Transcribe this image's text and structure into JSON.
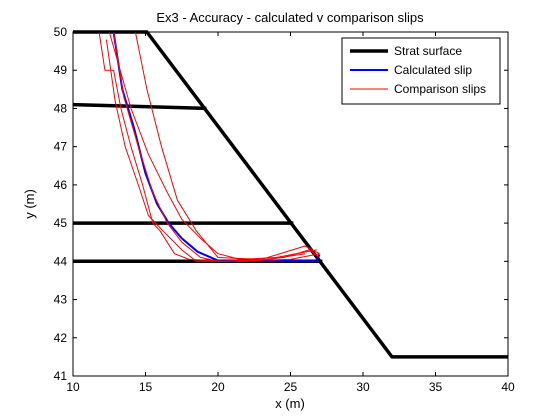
{
  "chart_data": {
    "type": "line",
    "title": "Ex3 - Accuracy - calculated v comparison slips",
    "xlabel": "x (m)",
    "ylabel": "y (m)",
    "xlim": [
      10,
      40
    ],
    "ylim": [
      41,
      50
    ],
    "xticks": [
      10,
      15,
      20,
      25,
      30,
      35,
      40
    ],
    "yticks": [
      41,
      42,
      43,
      44,
      45,
      46,
      47,
      48,
      49,
      50
    ],
    "grid": false,
    "legend_position": "top-right",
    "series": [
      {
        "name": "Strat surface",
        "color": "#000000",
        "segments": [
          [
            [
              10,
              50
            ],
            [
              15.1,
              50
            ],
            [
              32,
              41.5
            ],
            [
              40,
              41.5
            ]
          ],
          [
            [
              10,
              48.1
            ],
            [
              19.2,
              48
            ]
          ],
          [
            [
              10,
              45
            ],
            [
              25.2,
              45
            ]
          ],
          [
            [
              10,
              44
            ],
            [
              27.2,
              44
            ]
          ]
        ]
      },
      {
        "name": "Calculated slip",
        "color": "#0000ff",
        "segments": [
          [
            [
              12.8,
              50
            ],
            [
              13.4,
              48.5
            ],
            [
              14.2,
              47.5
            ],
            [
              15.0,
              46.3
            ],
            [
              15.8,
              45.5
            ],
            [
              16.6,
              45.0
            ],
            [
              17.5,
              44.6
            ],
            [
              18.6,
              44.25
            ],
            [
              20.0,
              44.02
            ],
            [
              26.8,
              44.0
            ],
            [
              27.0,
              44.18
            ]
          ]
        ]
      },
      {
        "name": "Comparison slips",
        "color": "#ff0000",
        "segments": [
          [
            [
              12.3,
              49.8
            ],
            [
              12.9,
              48.2
            ],
            [
              13.6,
              47.0
            ],
            [
              14.5,
              46.0
            ],
            [
              15.2,
              45.2
            ],
            [
              16.2,
              44.8
            ],
            [
              17.5,
              44.3
            ],
            [
              18.5,
              44.0
            ],
            [
              22.0,
              44.0
            ],
            [
              24.5,
              44.1
            ],
            [
              26.3,
              44.3
            ],
            [
              27.0,
              44.1
            ]
          ],
          [
            [
              12.8,
              50.0
            ],
            [
              13.5,
              48.3
            ],
            [
              14.5,
              47.0
            ],
            [
              15.5,
              45.8
            ],
            [
              16.5,
              45.0
            ],
            [
              17.5,
              44.5
            ],
            [
              18.8,
              44.1
            ],
            [
              20.0,
              44.0
            ],
            [
              25.0,
              44.05
            ],
            [
              27.0,
              44.2
            ]
          ],
          [
            [
              12.5,
              50.0
            ],
            [
              14.0,
              48.0
            ],
            [
              15.2,
              46.8
            ],
            [
              16.5,
              45.8
            ],
            [
              17.5,
              45.1
            ],
            [
              18.8,
              44.6
            ],
            [
              20.0,
              44.2
            ],
            [
              21.5,
              44.05
            ],
            [
              24.0,
              44.1
            ],
            [
              26.8,
              44.3
            ]
          ],
          [
            [
              14.3,
              50.0
            ],
            [
              15.1,
              48.5
            ],
            [
              16.1,
              47.0
            ],
            [
              17.2,
              45.6
            ],
            [
              18.5,
              44.8
            ],
            [
              20.0,
              44.1
            ],
            [
              23.0,
              44.05
            ],
            [
              26.0,
              44.4
            ],
            [
              27.0,
              44.2
            ]
          ],
          [
            [
              11.8,
              50.0
            ],
            [
              12.2,
              49.0
            ],
            [
              12.8,
              49.0
            ],
            [
              13.3,
              48.0
            ],
            [
              14.0,
              47.0
            ],
            [
              14.8,
              46.0
            ],
            [
              15.5,
              45.0
            ],
            [
              16.0,
              44.8
            ],
            [
              17.0,
              44.2
            ],
            [
              18.0,
              44.05
            ],
            [
              20.5,
              44.0
            ],
            [
              23.5,
              44.05
            ],
            [
              26.0,
              44.2
            ]
          ]
        ]
      }
    ]
  }
}
